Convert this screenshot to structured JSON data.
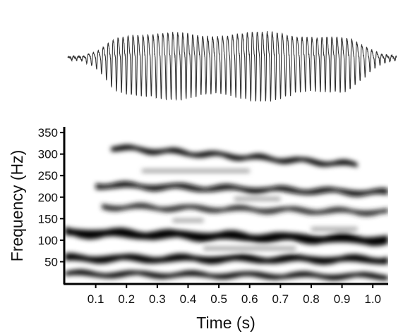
{
  "chart_data": [
    {
      "type": "line",
      "panel": "waveform",
      "title": "",
      "xlabel": "",
      "ylabel": "",
      "xlim": [
        0.0,
        1.05
      ],
      "series": [
        {
          "envelope": {
            "t": [
              0.0,
              0.05,
              0.1,
              0.15,
              0.2,
              0.3,
              0.4,
              0.5,
              0.6,
              0.7,
              0.8,
              0.9,
              0.95,
              1.0,
              1.05
            ],
            "amp": [
              0.04,
              0.06,
              0.25,
              0.75,
              0.95,
              0.85,
              0.85,
              0.9,
              0.88,
              0.9,
              0.8,
              0.65,
              0.4,
              0.15,
              0.06
            ]
          },
          "cycles_per_second": 63
        }
      ],
      "colors": {
        "stroke": "#333333"
      }
    },
    {
      "type": "heatmap",
      "panel": "spectrogram",
      "title": "",
      "xlabel": "Time (s)",
      "ylabel": "Frequency (Hz)",
      "xlim": [
        0.0,
        1.05
      ],
      "ylim": [
        0,
        360
      ],
      "x_ticks": [
        "0.1",
        "0.2",
        "0.3",
        "0.4",
        "0.5",
        "0.6",
        "0.7",
        "0.8",
        "0.9",
        "1.0"
      ],
      "x_tick_values": [
        0.1,
        0.2,
        0.3,
        0.4,
        0.5,
        0.6,
        0.7,
        0.8,
        0.9,
        1.0
      ],
      "y_ticks": [
        "50",
        "100",
        "150",
        "200",
        "250",
        "300",
        "350"
      ],
      "y_tick_values": [
        50,
        100,
        150,
        200,
        250,
        300,
        350
      ],
      "bands": [
        {
          "t0": 0.0,
          "t1": 1.05,
          "f0": 22,
          "f1": 16,
          "width": 12,
          "strength": 1.0
        },
        {
          "t0": 0.0,
          "t1": 1.05,
          "f0": 58,
          "f1": 55,
          "width": 16,
          "strength": 1.0
        },
        {
          "t0": 0.0,
          "t1": 1.05,
          "f0": 118,
          "f1": 100,
          "width": 20,
          "strength": 1.0
        },
        {
          "t0": 0.12,
          "t1": 1.05,
          "f0": 178,
          "f1": 165,
          "width": 12,
          "strength": 0.85
        },
        {
          "t0": 0.1,
          "t1": 1.05,
          "f0": 228,
          "f1": 210,
          "width": 13,
          "strength": 0.95
        },
        {
          "t0": 0.15,
          "t1": 0.95,
          "f0": 315,
          "f1": 275,
          "width": 12,
          "strength": 1.0
        }
      ],
      "colors": {
        "low": "#ffffff",
        "high": "#000000"
      }
    }
  ]
}
